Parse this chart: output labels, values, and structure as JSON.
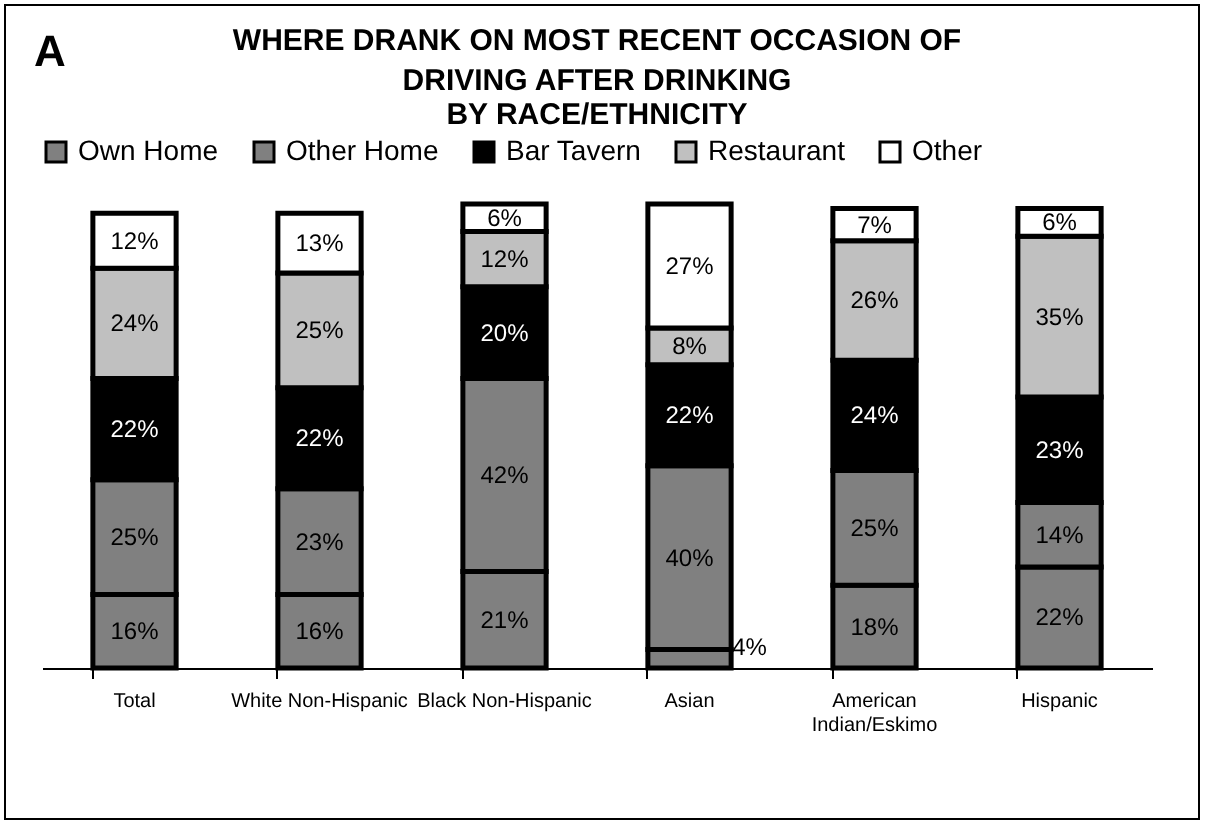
{
  "chart_data": {
    "type": "bar",
    "title": "WHERE DRANK ON MOST RECENT OCCASION OF DRIVING AFTER DRINKING",
    "subtitle": "BY RACE/ETHNICITY",
    "annotations": [
      "A"
    ],
    "categories": [
      "Total",
      "White Non-Hispanic",
      "Black Non-Hispanic",
      "Asian",
      "American Indian/Eskimo",
      "Hispanic"
    ],
    "stacked": true,
    "legend": "top",
    "series": [
      {
        "name": "Own Home",
        "color": "#808080",
        "values": [
          16,
          16,
          21,
          4,
          18,
          22
        ],
        "value_labels": [
          "16%",
          "16%",
          "21%",
          "4%",
          "18%",
          "22%"
        ]
      },
      {
        "name": "Other Home",
        "color": "#808080",
        "values": [
          25,
          23,
          42,
          40,
          25,
          14
        ],
        "value_labels": [
          "25%",
          "23%",
          "42%",
          "40%",
          "25%",
          "14%"
        ]
      },
      {
        "name": "Bar Tavern",
        "color": "#000000",
        "values": [
          22,
          22,
          20,
          22,
          24,
          23
        ],
        "value_labels": [
          "22%",
          "22%",
          "20%",
          "22%",
          "24%",
          "23%"
        ]
      },
      {
        "name": "Restaurant",
        "color": "#c0c0c0",
        "values": [
          24,
          25,
          12,
          8,
          26,
          35
        ],
        "value_labels": [
          "24%",
          "25%",
          "12%",
          "8%",
          "26%",
          "35%"
        ]
      },
      {
        "name": "Other",
        "color": "#ffffff",
        "values": [
          12,
          13,
          6,
          27,
          7,
          6
        ],
        "value_labels": [
          "12%",
          "13%",
          "6%",
          "27%",
          "7%",
          "6%"
        ]
      }
    ]
  }
}
